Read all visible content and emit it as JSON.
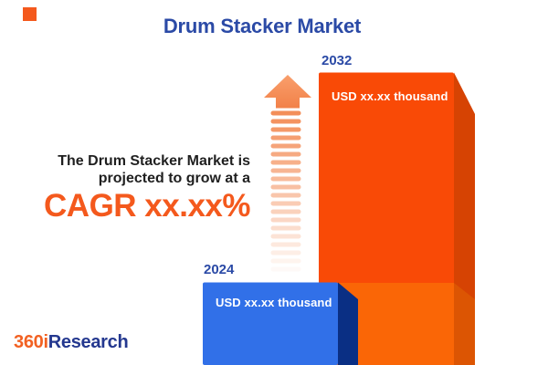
{
  "header": {
    "title": "Drum Stacker Market"
  },
  "promo": {
    "line1": "The Drum Stacker Market is",
    "line2": "projected to grow at a",
    "cagr": "CAGR xx.xx%"
  },
  "chart_data": {
    "type": "bar",
    "title": "Drum Stacker Market",
    "categories": [
      "2024",
      "2032"
    ],
    "values": [
      "xx.xx",
      "xx.xx"
    ],
    "value_labels": [
      "USD xx.xx thousand",
      "USD xx.xx thousand"
    ],
    "unit": "USD thousand",
    "annotations": [
      "The Drum Stacker Market is projected to grow at a",
      "CAGR xx.xx%"
    ],
    "legend": false,
    "axes": false,
    "style": "3d-bars with growth arrow, values masked as xx.xx"
  },
  "brand": {
    "logo_part1": "360i",
    "logo_part2": "Research"
  },
  "arrow": {
    "stripe_count": 20,
    "stripe_color": "#F2854C"
  },
  "colors": {
    "accent_orange": "#F4591D",
    "title_blue": "#2B4AA6",
    "text_dark": "#1F1F1F",
    "bar_blue_front": "#3170E8",
    "bar_blue_side": "#0A2F84",
    "bar_orange_front": "#F94A06",
    "bar_orange_front_lower": "#FA6606",
    "bar_orange_side": "#D64303",
    "bar_orange_side_lower": "#DC5503",
    "arrow_grad_top": "#F99F6C",
    "arrow_grad_bottom": "#F28149",
    "logo_orange": "#F26122",
    "logo_blue": "#24388F"
  }
}
